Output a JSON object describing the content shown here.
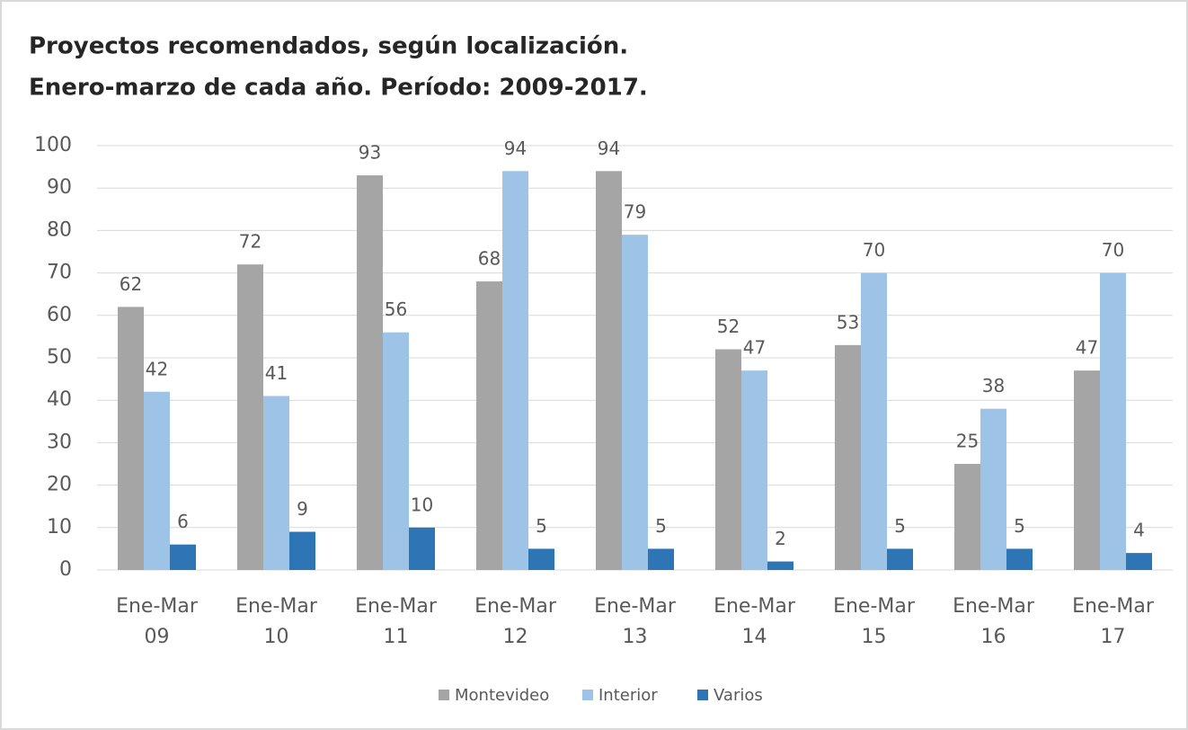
{
  "chart_data": {
    "type": "bar",
    "title": "Proyectos recomendados, según localización.",
    "subtitle": "Enero-marzo de cada año. Período: 2009-2017.",
    "categories": [
      "Ene-Mar 09",
      "Ene-Mar 10",
      "Ene-Mar 11",
      "Ene-Mar 12",
      "Ene-Mar 13",
      "Ene-Mar 14",
      "Ene-Mar 15",
      "Ene-Mar 16",
      "Ene-Mar 17"
    ],
    "series": [
      {
        "name": "Montevideo",
        "color": "#a5a5a5",
        "values": [
          62,
          72,
          93,
          68,
          94,
          52,
          53,
          25,
          47
        ]
      },
      {
        "name": "Interior",
        "color": "#9dc3e6",
        "values": [
          42,
          41,
          56,
          94,
          79,
          47,
          70,
          38,
          70
        ]
      },
      {
        "name": "Varios",
        "color": "#2e75b6",
        "values": [
          6,
          9,
          10,
          5,
          5,
          2,
          5,
          5,
          4
        ]
      }
    ],
    "ylim": [
      0,
      100
    ],
    "yticks": [
      0,
      10,
      20,
      30,
      40,
      50,
      60,
      70,
      80,
      90,
      100
    ],
    "grid": true,
    "legend": "bottom"
  }
}
